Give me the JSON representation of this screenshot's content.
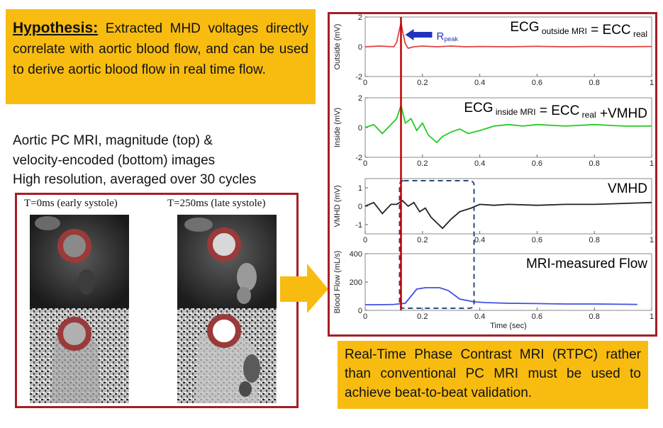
{
  "hypothesis": {
    "label": "Hypothesis:",
    "text": "Extracted MHD voltages directly correlate with aortic blood flow, and can be used to derive aortic  blood flow in real time flow."
  },
  "mri_description": {
    "lines": [
      "Aortic PC MRI, magnitude (top) &",
      "velocity-encoded (bottom) images",
      "High resolution, averaged over 30 cycles"
    ]
  },
  "mri_panel": {
    "left_caption": "T=0ms (early systole)",
    "right_caption": "T=250ms (late systole)"
  },
  "rtpc_note": "Real-Time Phase Contrast MRI (RTPC) rather than conventional PC MRI must be used to achieve beat-to-beat validation.",
  "colors": {
    "highlight": "#f8bc10",
    "frame": "#a61e24",
    "marker": "#c00000",
    "ecg_outside": "#e04040",
    "ecg_inside": "#22cc22",
    "vmhd": "#222222",
    "flow": "#4050e0",
    "rpeak_arrow": "#2233bb",
    "dashed_box": "#2a4a78"
  },
  "chart_data": [
    {
      "type": "line",
      "ylabel": "Outside (mV)",
      "annotation": {
        "prefix": "ECG",
        "subscript": "outside MRI",
        "eq": " = ECC",
        "eq_sub": "real",
        "tail": ""
      },
      "rpeak_label": "R",
      "rpeak_sub": "peak",
      "xlim": [
        0,
        1
      ],
      "ylim": [
        -2,
        2
      ],
      "xticks": [
        "0",
        "0.2",
        "0.4",
        "0.6",
        "0.8",
        "1"
      ],
      "yticks": [
        "2",
        "0",
        "-2"
      ],
      "series": [
        {
          "x": [
            0,
            0.05,
            0.1,
            0.11,
            0.12,
            0.125,
            0.13,
            0.14,
            0.15,
            0.17,
            0.2,
            0.25,
            0.3,
            0.35,
            0.4,
            0.5,
            0.6,
            0.7,
            0.8,
            0.9,
            1.0
          ],
          "y": [
            0,
            0.05,
            0,
            0.3,
            1.2,
            1.6,
            1.1,
            0.2,
            -0.1,
            0,
            0.05,
            0,
            0.05,
            0,
            0.02,
            0,
            0.03,
            0,
            0.02,
            0,
            0.02
          ]
        }
      ]
    },
    {
      "type": "line",
      "ylabel": "Inside (mV)",
      "annotation": {
        "prefix": "ECG",
        "subscript": "inside MRI",
        "eq": " = ECC",
        "eq_sub": "real",
        "tail": " +VMHD"
      },
      "xlim": [
        0,
        1
      ],
      "ylim": [
        -2,
        2
      ],
      "xticks": [
        "0",
        "0.2",
        "0.4",
        "0.6",
        "0.8",
        "1"
      ],
      "yticks": [
        "2",
        "0",
        "-2"
      ],
      "series": [
        {
          "x": [
            0,
            0.03,
            0.06,
            0.09,
            0.11,
            0.125,
            0.14,
            0.16,
            0.18,
            0.2,
            0.22,
            0.25,
            0.27,
            0.3,
            0.33,
            0.36,
            0.4,
            0.45,
            0.5,
            0.55,
            0.6,
            0.7,
            0.8,
            0.9,
            1.0
          ],
          "y": [
            0,
            0.2,
            -0.4,
            0.2,
            0.6,
            1.5,
            0.3,
            0.6,
            -0.2,
            0.3,
            -0.5,
            -1.0,
            -0.6,
            -0.3,
            -0.1,
            -0.4,
            -0.2,
            0.1,
            0.2,
            0.1,
            0.2,
            0.1,
            0.2,
            0.1,
            0.1
          ]
        }
      ]
    },
    {
      "type": "line",
      "ylabel": "VMHD (mV)",
      "annotation": {
        "prefix": "VMHD",
        "subscript": "",
        "eq": "",
        "eq_sub": "",
        "tail": ""
      },
      "xlim": [
        0,
        1
      ],
      "ylim": [
        -1.5,
        1.5
      ],
      "xticks": [
        "0",
        "0.2",
        "0.4",
        "0.6",
        "0.8",
        "1"
      ],
      "yticks": [
        "1",
        "0",
        "-1"
      ],
      "series": [
        {
          "x": [
            0,
            0.03,
            0.06,
            0.09,
            0.11,
            0.13,
            0.15,
            0.17,
            0.19,
            0.21,
            0.23,
            0.25,
            0.27,
            0.3,
            0.33,
            0.37,
            0.4,
            0.45,
            0.5,
            0.6,
            0.7,
            0.8,
            0.9,
            1.0
          ],
          "y": [
            0,
            0.2,
            -0.4,
            0.1,
            0.1,
            0.3,
            0.0,
            0.2,
            -0.3,
            -0.1,
            -0.6,
            -0.9,
            -1.2,
            -0.7,
            -0.3,
            -0.1,
            0.1,
            0.05,
            0.1,
            0.05,
            0.1,
            0.1,
            0.15,
            0.2
          ]
        }
      ]
    },
    {
      "type": "line",
      "ylabel": "Blood Flow (mL/s)",
      "xlabel": "Time (sec)",
      "annotation": {
        "prefix": "MRI-measured Flow",
        "subscript": "",
        "eq": "",
        "eq_sub": "",
        "tail": ""
      },
      "xlim": [
        0,
        1
      ],
      "ylim": [
        0,
        400
      ],
      "xticks": [
        "0",
        "0.2",
        "0.4",
        "0.6",
        "0.8",
        "1"
      ],
      "yticks": [
        "400",
        "200",
        "0"
      ],
      "series": [
        {
          "x": [
            0,
            0.05,
            0.1,
            0.14,
            0.18,
            0.21,
            0.26,
            0.29,
            0.33,
            0.38,
            0.42,
            0.5,
            0.6,
            0.7,
            0.8,
            0.9,
            0.95
          ],
          "y": [
            40,
            40,
            42,
            50,
            150,
            160,
            160,
            140,
            80,
            60,
            55,
            50,
            48,
            45,
            45,
            43,
            42
          ]
        }
      ],
      "highlight_x": [
        0.12,
        0.38
      ]
    }
  ]
}
